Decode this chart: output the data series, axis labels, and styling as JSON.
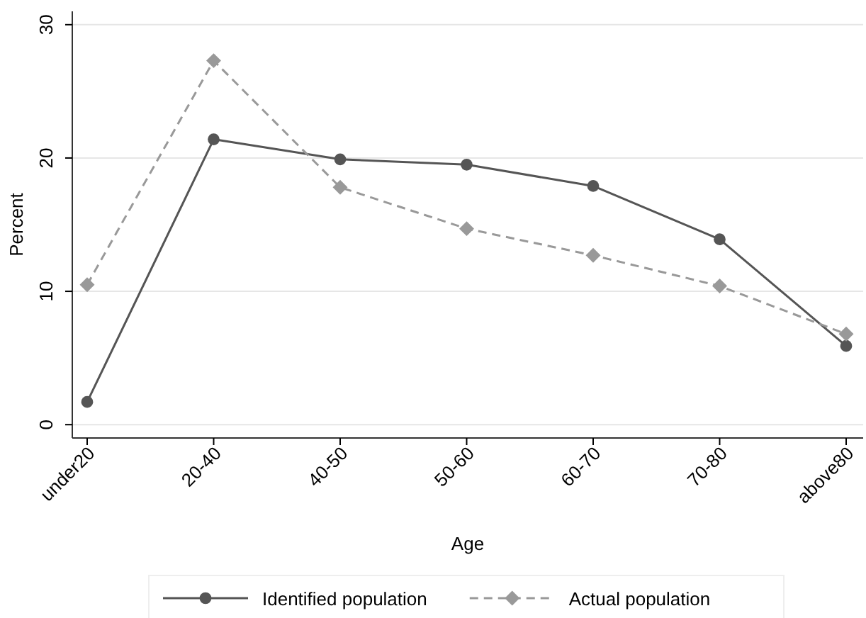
{
  "chart_data": {
    "type": "line",
    "xlabel": "Age",
    "ylabel": "Percent",
    "categories": [
      "under20",
      "20-40",
      "40-50",
      "50-60",
      "60-70",
      "70-80",
      "above80"
    ],
    "series": [
      {
        "name": "Identified population",
        "color": "#555555",
        "marker": "circle",
        "line_style": "solid",
        "values": [
          1.7,
          21.4,
          19.9,
          19.5,
          17.9,
          13.9,
          5.9
        ]
      },
      {
        "name": "Actual population",
        "color": "#999999",
        "marker": "diamond",
        "line_style": "dashed",
        "values": [
          10.5,
          27.3,
          17.8,
          14.7,
          12.7,
          10.4,
          6.8
        ]
      }
    ],
    "ylim": [
      -1,
      31
    ],
    "yticks": [
      0,
      10,
      20,
      30
    ],
    "grid": "y",
    "legend": "bottom"
  }
}
